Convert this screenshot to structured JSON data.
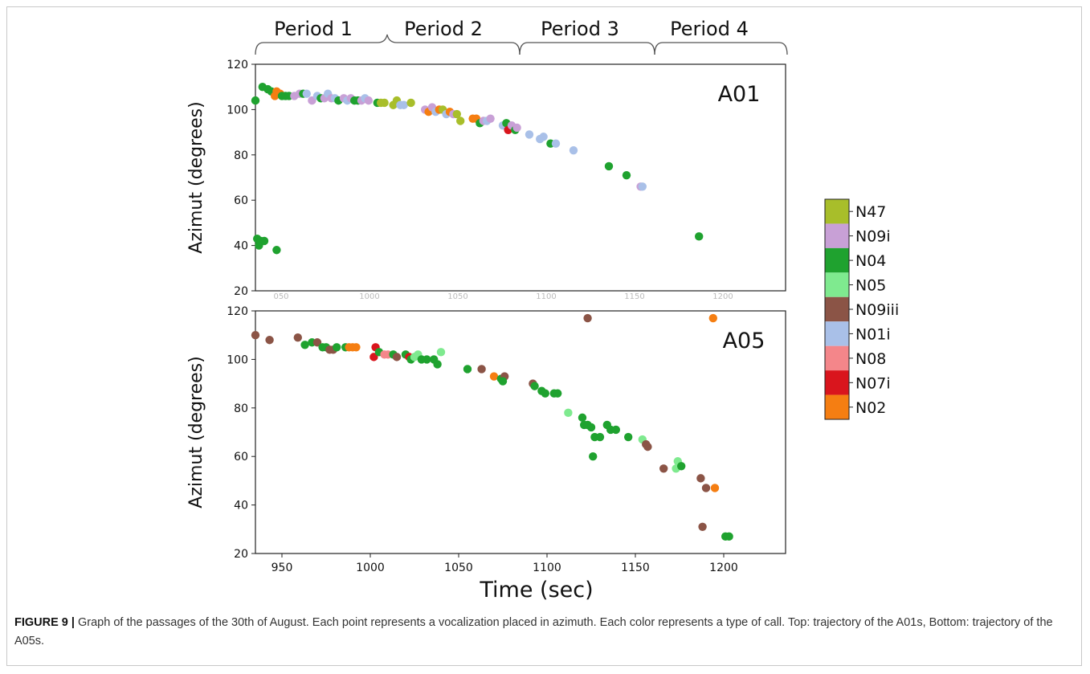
{
  "figure": {
    "caption_label": "FIGURE 9 |",
    "caption_text": " Graph of the passages of the 30th of August. Each point represents a vocalization placed in azimuth. Each color represents a type of call. Top: trajectory of the A01s, Bottom: trajectory of the A05s."
  },
  "periods": [
    "Period 1",
    "Period 2",
    "Period 3",
    "Period 4"
  ],
  "legend": [
    {
      "name": "N47",
      "color": "#a8be2a"
    },
    {
      "name": "N09i",
      "color": "#c8a0d6"
    },
    {
      "name": "N04",
      "color": "#1fa22f"
    },
    {
      "name": "N05",
      "color": "#7fea8f"
    },
    {
      "name": "N09iii",
      "color": "#8b5446"
    },
    {
      "name": "N01i",
      "color": "#a9c0e8"
    },
    {
      "name": "N08",
      "color": "#f4868a"
    },
    {
      "name": "N07i",
      "color": "#d9151d"
    },
    {
      "name": "N02",
      "color": "#f57e12"
    }
  ],
  "chart_data": [
    {
      "type": "scatter",
      "panel_label": "A01",
      "ylabel": "Azimut (degrees)",
      "xlabel": "",
      "xlim": [
        935,
        1235
      ],
      "ylim": [
        20,
        120
      ],
      "yticks": [
        20,
        40,
        60,
        80,
        100,
        120
      ],
      "grid": false,
      "points": [
        [
          935,
          104,
          "N04"
        ],
        [
          939,
          110,
          "N04"
        ],
        [
          942,
          109,
          "N04"
        ],
        [
          944,
          108,
          "N04"
        ],
        [
          946,
          106,
          "N02"
        ],
        [
          947,
          108,
          "N02"
        ],
        [
          948,
          107,
          "N02"
        ],
        [
          949,
          107,
          "N02"
        ],
        [
          950,
          106,
          "N04"
        ],
        [
          952,
          106,
          "N04"
        ],
        [
          954,
          106,
          "N04"
        ],
        [
          957,
          106,
          "N09i"
        ],
        [
          960,
          107,
          "N09i"
        ],
        [
          962,
          107,
          "N04"
        ],
        [
          964,
          107,
          "N01i"
        ],
        [
          967,
          104,
          "N09i"
        ],
        [
          970,
          106,
          "N01i"
        ],
        [
          972,
          105,
          "N04"
        ],
        [
          974,
          105,
          "N09i"
        ],
        [
          976,
          107,
          "N01i"
        ],
        [
          978,
          105,
          "N09i"
        ],
        [
          980,
          105,
          "N01i"
        ],
        [
          982,
          104,
          "N04"
        ],
        [
          985,
          105,
          "N09i"
        ],
        [
          987,
          104,
          "N01i"
        ],
        [
          989,
          105,
          "N09i"
        ],
        [
          991,
          104,
          "N04"
        ],
        [
          993,
          104,
          "N04"
        ],
        [
          995,
          104,
          "N09i"
        ],
        [
          997,
          105,
          "N01i"
        ],
        [
          999,
          104,
          "N09i"
        ],
        [
          1004,
          103,
          "N04"
        ],
        [
          1006,
          103,
          "N47"
        ],
        [
          1008,
          103,
          "N47"
        ],
        [
          1013,
          102,
          "N47"
        ],
        [
          1015,
          104,
          "N47"
        ],
        [
          1017,
          102,
          "N01i"
        ],
        [
          1019,
          102,
          "N01i"
        ],
        [
          1023,
          103,
          "N47"
        ],
        [
          1031,
          100,
          "N09i"
        ],
        [
          1033,
          99,
          "N02"
        ],
        [
          1035,
          101,
          "N09i"
        ],
        [
          1037,
          99,
          "N01i"
        ],
        [
          1039,
          100,
          "N02"
        ],
        [
          1041,
          100,
          "N47"
        ],
        [
          1043,
          98,
          "N01i"
        ],
        [
          1045,
          99,
          "N02"
        ],
        [
          1047,
          98,
          "N09i"
        ],
        [
          1049,
          98,
          "N47"
        ],
        [
          1051,
          95,
          "N47"
        ],
        [
          1058,
          96,
          "N02"
        ],
        [
          1060,
          96,
          "N02"
        ],
        [
          1062,
          94,
          "N04"
        ],
        [
          1064,
          95,
          "N09i"
        ],
        [
          1066,
          95,
          "N01i"
        ],
        [
          1068,
          96,
          "N09i"
        ],
        [
          1075,
          93,
          "N01i"
        ],
        [
          1077,
          94,
          "N04"
        ],
        [
          1078,
          91,
          "N07i"
        ],
        [
          1080,
          93,
          "N09i"
        ],
        [
          1082,
          91,
          "N04"
        ],
        [
          1083,
          92,
          "N09i"
        ],
        [
          1090,
          89,
          "N01i"
        ],
        [
          1096,
          87,
          "N01i"
        ],
        [
          1098,
          88,
          "N01i"
        ],
        [
          1102,
          85,
          "N04"
        ],
        [
          1105,
          85,
          "N01i"
        ],
        [
          1115,
          82,
          "N01i"
        ],
        [
          1135,
          75,
          "N04"
        ],
        [
          1145,
          71,
          "N04"
        ],
        [
          1153,
          66,
          "N09i"
        ],
        [
          1154,
          66,
          "N01i"
        ],
        [
          936,
          43,
          "N04"
        ],
        [
          937,
          40,
          "N04"
        ],
        [
          938,
          42,
          "N04"
        ],
        [
          940,
          42,
          "N04"
        ],
        [
          947,
          38,
          "N04"
        ],
        [
          1186,
          44,
          "N04"
        ]
      ]
    },
    {
      "type": "scatter",
      "panel_label": "A05",
      "ylabel": "Azimut (degrees)",
      "xlabel": "Time (sec)",
      "xlim": [
        935,
        1235
      ],
      "ylim": [
        20,
        120
      ],
      "xticks": [
        950,
        1000,
        1050,
        1100,
        1150,
        1200
      ],
      "yticks": [
        20,
        40,
        60,
        80,
        100,
        120
      ],
      "grid": false,
      "points": [
        [
          935,
          110,
          "N09iii"
        ],
        [
          943,
          108,
          "N09iii"
        ],
        [
          959,
          109,
          "N09iii"
        ],
        [
          963,
          106,
          "N04"
        ],
        [
          967,
          107,
          "N04"
        ],
        [
          970,
          107,
          "N09iii"
        ],
        [
          973,
          105,
          "N04"
        ],
        [
          975,
          105,
          "N04"
        ],
        [
          977,
          104,
          "N09iii"
        ],
        [
          979,
          104,
          "N09iii"
        ],
        [
          981,
          105,
          "N04"
        ],
        [
          986,
          105,
          "N04"
        ],
        [
          988,
          105,
          "N02"
        ],
        [
          990,
          105,
          "N02"
        ],
        [
          992,
          105,
          "N02"
        ],
        [
          1002,
          101,
          "N07i"
        ],
        [
          1003,
          105,
          "N07i"
        ],
        [
          1005,
          103,
          "N04"
        ],
        [
          1008,
          102,
          "N08"
        ],
        [
          1010,
          102,
          "N08"
        ],
        [
          1013,
          102,
          "N04"
        ],
        [
          1015,
          101,
          "N09iii"
        ],
        [
          1020,
          102,
          "N04"
        ],
        [
          1022,
          101,
          "N07i"
        ],
        [
          1023,
          100,
          "N04"
        ],
        [
          1025,
          101,
          "N05"
        ],
        [
          1027,
          102,
          "N05"
        ],
        [
          1029,
          100,
          "N04"
        ],
        [
          1032,
          100,
          "N04"
        ],
        [
          1036,
          100,
          "N04"
        ],
        [
          1038,
          98,
          "N04"
        ],
        [
          1040,
          103,
          "N05"
        ],
        [
          1055,
          96,
          "N04"
        ],
        [
          1063,
          96,
          "N09iii"
        ],
        [
          1070,
          93,
          "N02"
        ],
        [
          1074,
          92,
          "N04"
        ],
        [
          1076,
          93,
          "N09iii"
        ],
        [
          1075,
          91,
          "N04"
        ],
        [
          1092,
          90,
          "N09iii"
        ],
        [
          1093,
          89,
          "N04"
        ],
        [
          1097,
          87,
          "N04"
        ],
        [
          1099,
          86,
          "N04"
        ],
        [
          1104,
          86,
          "N04"
        ],
        [
          1106,
          86,
          "N04"
        ],
        [
          1112,
          78,
          "N05"
        ],
        [
          1120,
          76,
          "N04"
        ],
        [
          1121,
          73,
          "N04"
        ],
        [
          1123,
          73,
          "N04"
        ],
        [
          1125,
          72,
          "N04"
        ],
        [
          1126,
          60,
          "N04"
        ],
        [
          1127,
          68,
          "N04"
        ],
        [
          1130,
          68,
          "N04"
        ],
        [
          1134,
          73,
          "N04"
        ],
        [
          1136,
          71,
          "N04"
        ],
        [
          1139,
          71,
          "N04"
        ],
        [
          1146,
          68,
          "N04"
        ],
        [
          1154,
          67,
          "N05"
        ],
        [
          1156,
          65,
          "N09iii"
        ],
        [
          1157,
          64,
          "N09iii"
        ],
        [
          1166,
          55,
          "N09iii"
        ],
        [
          1173,
          55,
          "N05"
        ],
        [
          1174,
          58,
          "N05"
        ],
        [
          1176,
          56,
          "N04"
        ],
        [
          1187,
          51,
          "N09iii"
        ],
        [
          1190,
          47,
          "N09iii"
        ],
        [
          1195,
          47,
          "N02"
        ],
        [
          1188,
          31,
          "N09iii"
        ],
        [
          1201,
          27,
          "N04"
        ],
        [
          1203,
          27,
          "N04"
        ],
        [
          1123,
          117,
          "N09iii"
        ],
        [
          1194,
          117,
          "N02"
        ]
      ]
    }
  ]
}
